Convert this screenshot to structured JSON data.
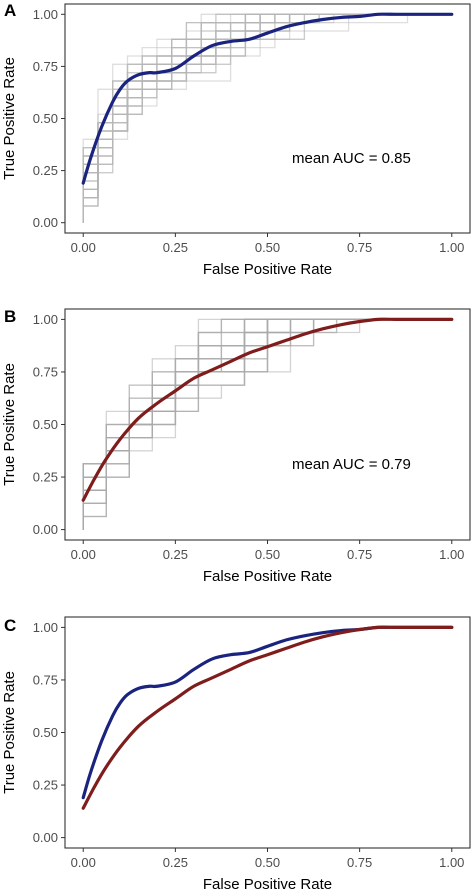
{
  "chart_data": [
    {
      "panel": "A",
      "type": "line",
      "xlabel": "False Positive Rate",
      "ylabel": "True Positive Rate",
      "xlim": [
        0,
        1
      ],
      "ylim": [
        0,
        1
      ],
      "x_ticks": [
        "0.00",
        "0.25",
        "0.50",
        "0.75",
        "1.00"
      ],
      "y_ticks": [
        "0.00",
        "0.25",
        "0.50",
        "0.75",
        "1.00"
      ],
      "annotation": "mean AUC = 0.85",
      "grid": false,
      "background_roc_curves": "many grey step curves (individual folds)",
      "series": [
        {
          "color": "#1a237e",
          "x": [
            0.0,
            0.02,
            0.05,
            0.08,
            0.1,
            0.12,
            0.15,
            0.18,
            0.2,
            0.25,
            0.3,
            0.35,
            0.4,
            0.45,
            0.5,
            0.55,
            0.6,
            0.65,
            0.7,
            0.75,
            0.8,
            0.85,
            0.9,
            0.95,
            1.0
          ],
          "y": [
            0.19,
            0.31,
            0.46,
            0.58,
            0.64,
            0.68,
            0.71,
            0.72,
            0.72,
            0.74,
            0.8,
            0.85,
            0.87,
            0.88,
            0.91,
            0.94,
            0.96,
            0.975,
            0.985,
            0.99,
            1.0,
            1.0,
            1.0,
            1.0,
            1.0
          ]
        }
      ]
    },
    {
      "panel": "B",
      "type": "line",
      "xlabel": "False Positive Rate",
      "ylabel": "True Positive Rate",
      "xlim": [
        0,
        1
      ],
      "ylim": [
        0,
        1
      ],
      "x_ticks": [
        "0.00",
        "0.25",
        "0.50",
        "0.75",
        "1.00"
      ],
      "y_ticks": [
        "0.00",
        "0.25",
        "0.50",
        "0.75",
        "1.00"
      ],
      "annotation": "mean AUC = 0.79",
      "grid": false,
      "background_roc_curves": "many grey step curves (individual folds)",
      "series": [
        {
          "color": "#7f1d1d",
          "x": [
            0.0,
            0.03,
            0.06,
            0.1,
            0.15,
            0.2,
            0.25,
            0.3,
            0.35,
            0.4,
            0.45,
            0.5,
            0.55,
            0.6,
            0.65,
            0.7,
            0.75,
            0.8,
            0.85,
            0.9,
            0.95,
            1.0
          ],
          "y": [
            0.14,
            0.24,
            0.33,
            0.43,
            0.53,
            0.6,
            0.66,
            0.72,
            0.76,
            0.8,
            0.84,
            0.87,
            0.9,
            0.93,
            0.955,
            0.975,
            0.99,
            1.0,
            1.0,
            1.0,
            1.0,
            1.0
          ]
        }
      ]
    },
    {
      "panel": "C",
      "type": "line",
      "xlabel": "False Positive Rate",
      "ylabel": "True Positive Rate",
      "xlim": [
        0,
        1
      ],
      "ylim": [
        0,
        1
      ],
      "x_ticks": [
        "0.00",
        "0.25",
        "0.50",
        "0.75",
        "1.00"
      ],
      "y_ticks": [
        "0.00",
        "0.25",
        "0.50",
        "0.75",
        "1.00"
      ],
      "annotation": "",
      "grid": false,
      "series": [
        {
          "color": "#1a237e",
          "x": [
            0.0,
            0.02,
            0.05,
            0.08,
            0.1,
            0.12,
            0.15,
            0.18,
            0.2,
            0.25,
            0.3,
            0.35,
            0.4,
            0.45,
            0.5,
            0.55,
            0.6,
            0.65,
            0.7,
            0.75,
            0.8,
            0.85,
            0.9,
            0.95,
            1.0
          ],
          "y": [
            0.19,
            0.31,
            0.46,
            0.58,
            0.64,
            0.68,
            0.71,
            0.72,
            0.72,
            0.74,
            0.8,
            0.85,
            0.87,
            0.88,
            0.91,
            0.94,
            0.96,
            0.975,
            0.985,
            0.99,
            1.0,
            1.0,
            1.0,
            1.0,
            1.0
          ]
        },
        {
          "color": "#7f1d1d",
          "x": [
            0.0,
            0.03,
            0.06,
            0.1,
            0.15,
            0.2,
            0.25,
            0.3,
            0.35,
            0.4,
            0.45,
            0.5,
            0.55,
            0.6,
            0.65,
            0.7,
            0.75,
            0.8,
            0.85,
            0.9,
            0.95,
            1.0
          ],
          "y": [
            0.14,
            0.24,
            0.33,
            0.43,
            0.53,
            0.6,
            0.66,
            0.72,
            0.76,
            0.8,
            0.84,
            0.87,
            0.9,
            0.93,
            0.955,
            0.975,
            0.99,
            1.0,
            1.0,
            1.0,
            1.0,
            1.0
          ]
        }
      ]
    }
  ]
}
